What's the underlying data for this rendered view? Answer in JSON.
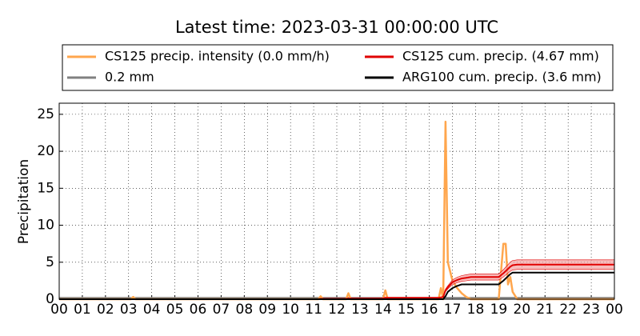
{
  "chart_data": {
    "type": "line",
    "title": "Latest time: 2023-03-31 00:00:00 UTC",
    "ylabel": "Precipitation",
    "xlim": [
      0,
      24
    ],
    "ylim": [
      0,
      26.5
    ],
    "xticks": [
      {
        "value": 0,
        "label": "00"
      },
      {
        "value": 1,
        "label": "01"
      },
      {
        "value": 2,
        "label": "02"
      },
      {
        "value": 3,
        "label": "03"
      },
      {
        "value": 4,
        "label": "04"
      },
      {
        "value": 5,
        "label": "05"
      },
      {
        "value": 6,
        "label": "06"
      },
      {
        "value": 7,
        "label": "07"
      },
      {
        "value": 8,
        "label": "08"
      },
      {
        "value": 9,
        "label": "09"
      },
      {
        "value": 10,
        "label": "10"
      },
      {
        "value": 11,
        "label": "11"
      },
      {
        "value": 12,
        "label": "12"
      },
      {
        "value": 13,
        "label": "13"
      },
      {
        "value": 14,
        "label": "14"
      },
      {
        "value": 15,
        "label": "15"
      },
      {
        "value": 16,
        "label": "16"
      },
      {
        "value": 17,
        "label": "17"
      },
      {
        "value": 18,
        "label": "18"
      },
      {
        "value": 19,
        "label": "19"
      },
      {
        "value": 20,
        "label": "20"
      },
      {
        "value": 21,
        "label": "21"
      },
      {
        "value": 22,
        "label": "22"
      },
      {
        "value": 23,
        "label": "23"
      },
      {
        "value": 24,
        "label": "00"
      }
    ],
    "yticks": [
      0,
      5,
      10,
      15,
      20,
      25
    ],
    "grid": true,
    "x": [
      0,
      3.1,
      3.2,
      3.3,
      11.2,
      11.3,
      11.4,
      12.4,
      12.5,
      12.6,
      14.0,
      14.1,
      14.2,
      16.4,
      16.5,
      16.6,
      16.7,
      16.8,
      17.0,
      17.2,
      17.4,
      17.6,
      17.8,
      18.0,
      19.0,
      19.2,
      19.3,
      19.4,
      19.5,
      19.6,
      19.8,
      24
    ],
    "series": [
      {
        "name": "CS125 precip. intensity (0.0 mm/h)",
        "color": "#ffa64d",
        "width": 2.5,
        "values": [
          0,
          0,
          0.3,
          0,
          0,
          0.4,
          0,
          0,
          0.8,
          0,
          0,
          1.2,
          0,
          0,
          1.5,
          0,
          24,
          5,
          2.5,
          1.5,
          0.8,
          0.3,
          0,
          0,
          0,
          7.5,
          7.5,
          2,
          3,
          1,
          0,
          0
        ]
      },
      {
        "name": "0.2 mm",
        "color": "#808080",
        "width": 2,
        "values": [
          0.2,
          0.2,
          0.2,
          0.2,
          0.2,
          0.2,
          0.2,
          0.2,
          0.2,
          0.2,
          0.2,
          0.2,
          0.2,
          0.2,
          0.2,
          0.2,
          0.2,
          0.2,
          0.2,
          0.2,
          0.2,
          0.2,
          0.2,
          0.2,
          0.2,
          0.2,
          0.2,
          0.2,
          0.2,
          0.2,
          0.2,
          0.2
        ]
      },
      {
        "name": "CS125 cum. precip. (4.67 mm)",
        "color": "#e00000",
        "width": 2,
        "band_color": "#f4a0a0",
        "values": [
          0,
          0,
          0,
          0,
          0,
          0.05,
          0.05,
          0.05,
          0.1,
          0.1,
          0.1,
          0.2,
          0.2,
          0.2,
          0.25,
          0.3,
          1.2,
          1.6,
          2.3,
          2.6,
          2.8,
          2.9,
          3,
          3,
          3,
          3.5,
          3.8,
          4.1,
          4.4,
          4.6,
          4.67,
          4.67
        ],
        "upper": [
          0,
          0,
          0,
          0,
          0,
          0.06,
          0.06,
          0.06,
          0.11,
          0.11,
          0.11,
          0.23,
          0.23,
          0.23,
          0.29,
          0.34,
          1.37,
          1.82,
          2.62,
          2.96,
          3.19,
          3.31,
          3.42,
          3.42,
          3.42,
          3.99,
          4.33,
          4.67,
          5.02,
          5.24,
          5.32,
          5.32
        ],
        "lower": [
          0,
          0,
          0,
          0,
          0,
          0.04,
          0.04,
          0.04,
          0.09,
          0.09,
          0.09,
          0.17,
          0.17,
          0.17,
          0.22,
          0.26,
          1.03,
          1.38,
          1.98,
          2.24,
          2.41,
          2.49,
          2.58,
          2.58,
          2.58,
          3.01,
          3.27,
          3.53,
          3.78,
          3.96,
          4.02,
          4.02
        ]
      },
      {
        "name": "ARG100 cum. precip. (3.6 mm)",
        "color": "#000000",
        "width": 2,
        "values": [
          0,
          0,
          0,
          0,
          0,
          0,
          0,
          0,
          0,
          0,
          0,
          0,
          0,
          0,
          0,
          0,
          0.4,
          1.0,
          1.5,
          1.8,
          2.0,
          2.0,
          2.0,
          2.0,
          2.0,
          2.5,
          2.8,
          3.1,
          3.4,
          3.6,
          3.6,
          3.6
        ]
      }
    ]
  }
}
